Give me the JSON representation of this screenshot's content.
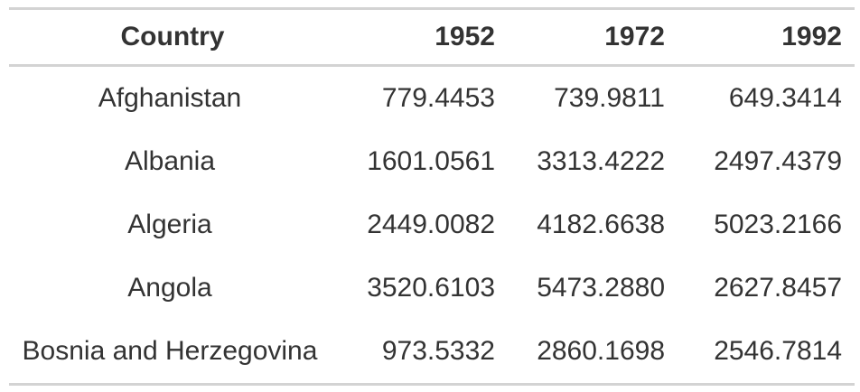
{
  "table": {
    "columns": [
      "Country",
      "1952",
      "1972",
      "1992"
    ],
    "rows": [
      [
        "Afghanistan",
        "779.4453",
        "739.9811",
        "649.3414"
      ],
      [
        "Albania",
        "1601.0561",
        "3313.4222",
        "2497.4379"
      ],
      [
        "Algeria",
        "2449.0082",
        "4182.6638",
        "5023.2166"
      ],
      [
        "Angola",
        "3520.6103",
        "5473.2880",
        "2627.8457"
      ],
      [
        "Bosnia and Herzegovina",
        "973.5332",
        "2860.1698",
        "2546.7814"
      ]
    ]
  }
}
